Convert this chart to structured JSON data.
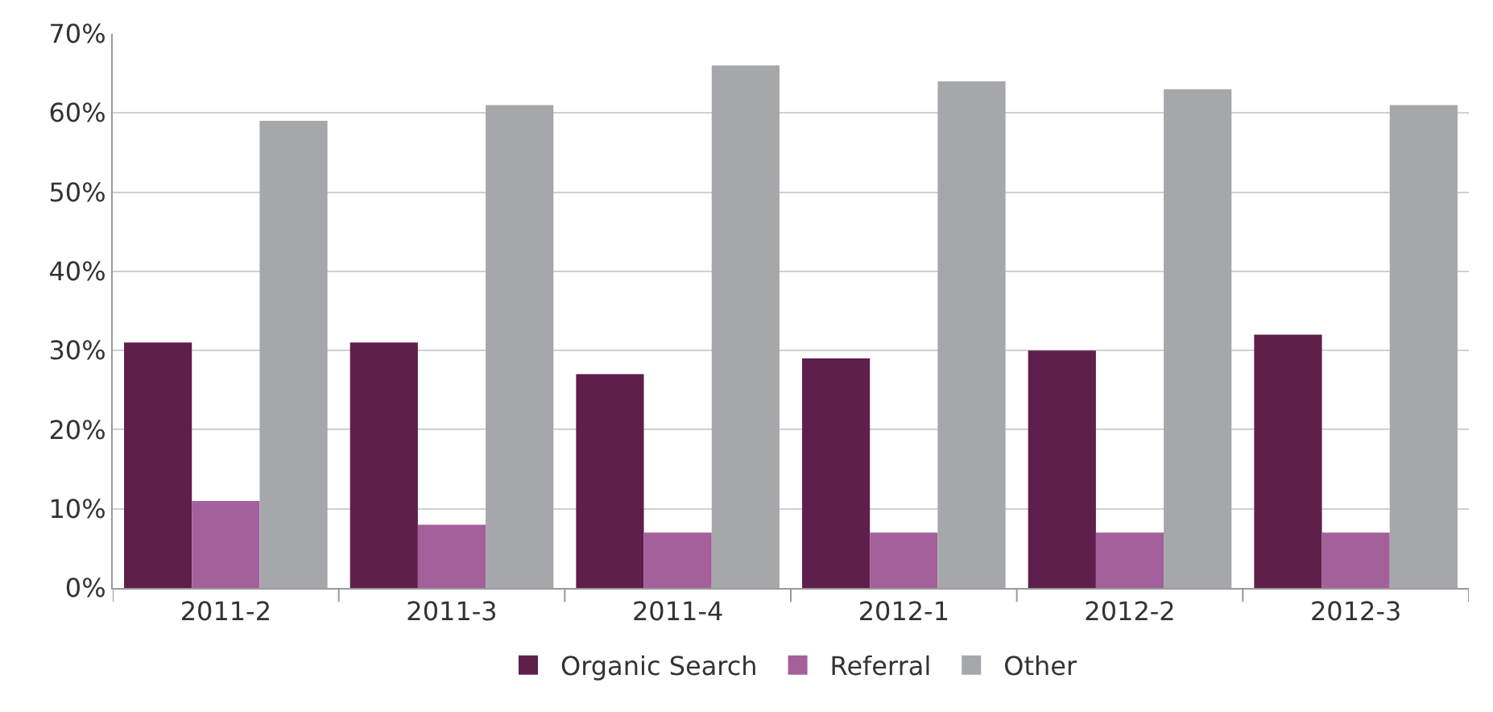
{
  "chart_data": {
    "type": "bar",
    "categories": [
      "2011-2",
      "2011-3",
      "2011-4",
      "2012-1",
      "2012-2",
      "2012-3"
    ],
    "series": [
      {
        "name": "Organic Search",
        "color": "#5e1f4c",
        "values": [
          31,
          31,
          27,
          29,
          30,
          32
        ]
      },
      {
        "name": "Referral",
        "color": "#a3609a",
        "values": [
          11,
          8,
          7,
          7,
          7,
          7
        ]
      },
      {
        "name": "Other",
        "color": "#a6a7ab",
        "values": [
          59,
          61,
          66,
          64,
          63,
          61
        ]
      }
    ],
    "ylim": [
      0,
      70
    ],
    "yticks": [
      {
        "value": 0,
        "label": "0%"
      },
      {
        "value": 10,
        "label": "10%"
      },
      {
        "value": 20,
        "label": "20%"
      },
      {
        "value": 30,
        "label": "30%"
      },
      {
        "value": 40,
        "label": "40%"
      },
      {
        "value": 50,
        "label": "50%"
      },
      {
        "value": 60,
        "label": "60%"
      },
      {
        "value": 70,
        "label": "70%"
      }
    ],
    "grid": "y",
    "legend": "bottom"
  }
}
